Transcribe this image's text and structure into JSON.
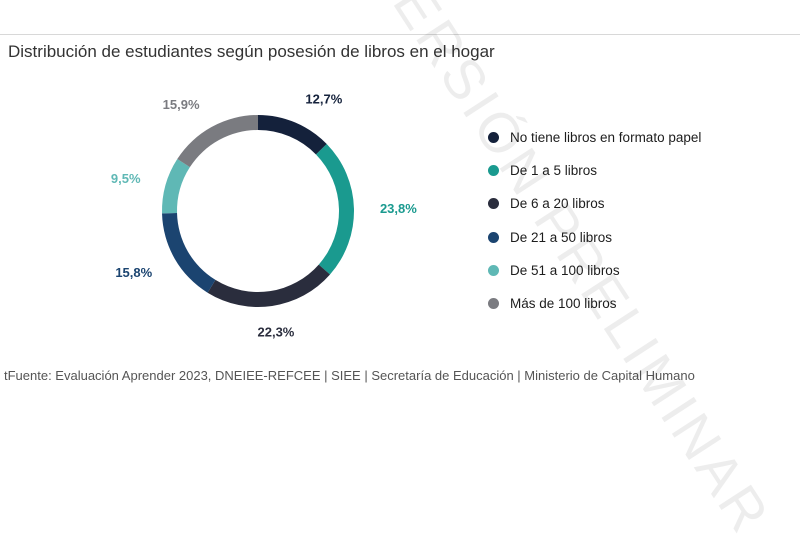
{
  "chart_data": {
    "type": "pie",
    "variant": "donut",
    "title": "Distribución de estudiantes según posesión de libros en el hogar",
    "categories": [
      "No tiene libros en formato papel",
      "De 1 a 5 libros",
      "De 6 a 20 libros",
      "De 21 a 50 libros",
      "De 51 a 100 libros",
      "Más de 100 libros"
    ],
    "values": [
      12.7,
      23.8,
      22.3,
      15.8,
      9.5,
      15.9
    ],
    "value_labels": [
      "12,7%",
      "23,8%",
      "22,3%",
      "15,8%",
      "9,5%",
      "15,9%"
    ],
    "colors": [
      "#14213b",
      "#1a9a8f",
      "#2a2d3d",
      "#1b4470",
      "#5fb8b5",
      "#7a7b80"
    ],
    "label_colors": [
      "#14213b",
      "#1a9a8f",
      "#2a2d3d",
      "#1b4470",
      "#5fb8b5",
      "#7a7b80"
    ],
    "legend_position": "right"
  },
  "source": "tFuente: Evaluación Aprender 2023, DNEIEE-REFCEE | SIEE | Secretaría de Educación | Ministerio de Capital Humano",
  "watermark": "VERSIÓN PRELIMINAR"
}
